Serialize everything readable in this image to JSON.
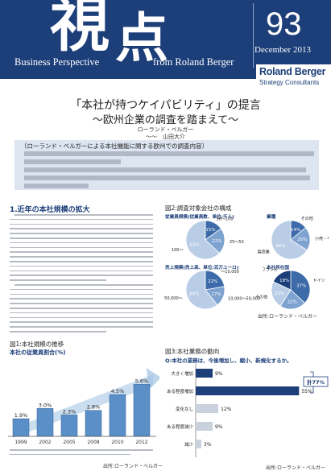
{
  "masthead": {
    "title_kanji_1": "視",
    "title_kanji_2": "点",
    "subtitle_left": "Business Perspective",
    "subtitle_right": "from Roland Berger",
    "issue_number": "93",
    "issue_date": "December 2013",
    "logo_name": "Roland Berger",
    "logo_tagline": "Strategy Consultants"
  },
  "headline": {
    "line1": "「本社が持つケイパビリティ」の提言",
    "line2": "〜欧州企業の調査を踏まえて〜",
    "author_title": "ローランド・ベルガー",
    "author_name": "〜〜　山田大介"
  },
  "summary": {
    "heading": "〔ローランド・ベルガーによる本社機能に関する欧州での調査内容〕"
  },
  "section1": {
    "title": "1.近年の本社規模の拡大"
  },
  "figure1": {
    "title": "図1:本社規模の推移",
    "subtitle": "本社の従業員割合(%)",
    "source": "出所:ローランド・ベルガー",
    "chart_data": {
      "type": "bar",
      "categories": [
        "1999",
        "2002",
        "2005",
        "2008",
        "2010",
        "2012"
      ],
      "values": [
        1.9,
        3.0,
        2.3,
        2.8,
        4.5,
        5.6
      ],
      "value_labels": [
        "1.9%",
        "3.0%",
        "2.3%",
        "2.8%",
        "4.5%",
        "5.6%"
      ],
      "trend_arrow": true
    }
  },
  "figure2": {
    "title": "図2:調査対象会社の構成",
    "source": "出所:ローランド・ベルガー",
    "chart_data": [
      {
        "type": "pie",
        "title": "従業員規模(従業員数、単位:千人)",
        "labels": [
          "50〜100",
          "25〜50",
          "100〜"
        ],
        "values": [
          15,
          22,
          63
        ],
        "value_labels": [
          "15%",
          "22%",
          "63%"
        ]
      },
      {
        "type": "pie",
        "title": "業種",
        "labels": [
          "その他",
          "小売・サービス",
          "製造業"
        ],
        "values": [
          14,
          20,
          66
        ],
        "value_labels": [
          "14%",
          "20%",
          "66%"
        ]
      },
      {
        "type": "pie",
        "title": "売上規模(売上高、単位:百万ユーロ)",
        "labels": [
          "〜10,000",
          "10,000〜50,000",
          "50,000〜"
        ],
        "values": [
          22,
          17,
          60
        ],
        "value_labels": [
          "22%",
          "17%",
          "60%"
        ]
      },
      {
        "type": "pie",
        "title": "本社所在国",
        "labels": [
          "ドイツ",
          "スイス",
          "その他",
          "フランス"
        ],
        "values": [
          37,
          22,
          23,
          18
        ],
        "value_labels": [
          "37%",
          "22%",
          "23%",
          "18%"
        ]
      }
    ]
  },
  "figure3": {
    "title": "図3:本社業務の動向",
    "question": "Q:本社の業務は、今後増加し、縮小、新規化するか。",
    "source": "出所:ローランド・ベルガー",
    "chart_data": {
      "type": "bar",
      "orientation": "horizontal",
      "categories": [
        "大きく増加",
        "ある程度増加",
        "変化なし",
        "ある程度減少",
        "減少"
      ],
      "values": [
        9,
        55,
        12,
        9,
        3
      ],
      "value_labels": [
        "9%",
        "55%",
        "12%",
        "9%",
        "3%"
      ],
      "bracket_label": "計77%"
    }
  }
}
